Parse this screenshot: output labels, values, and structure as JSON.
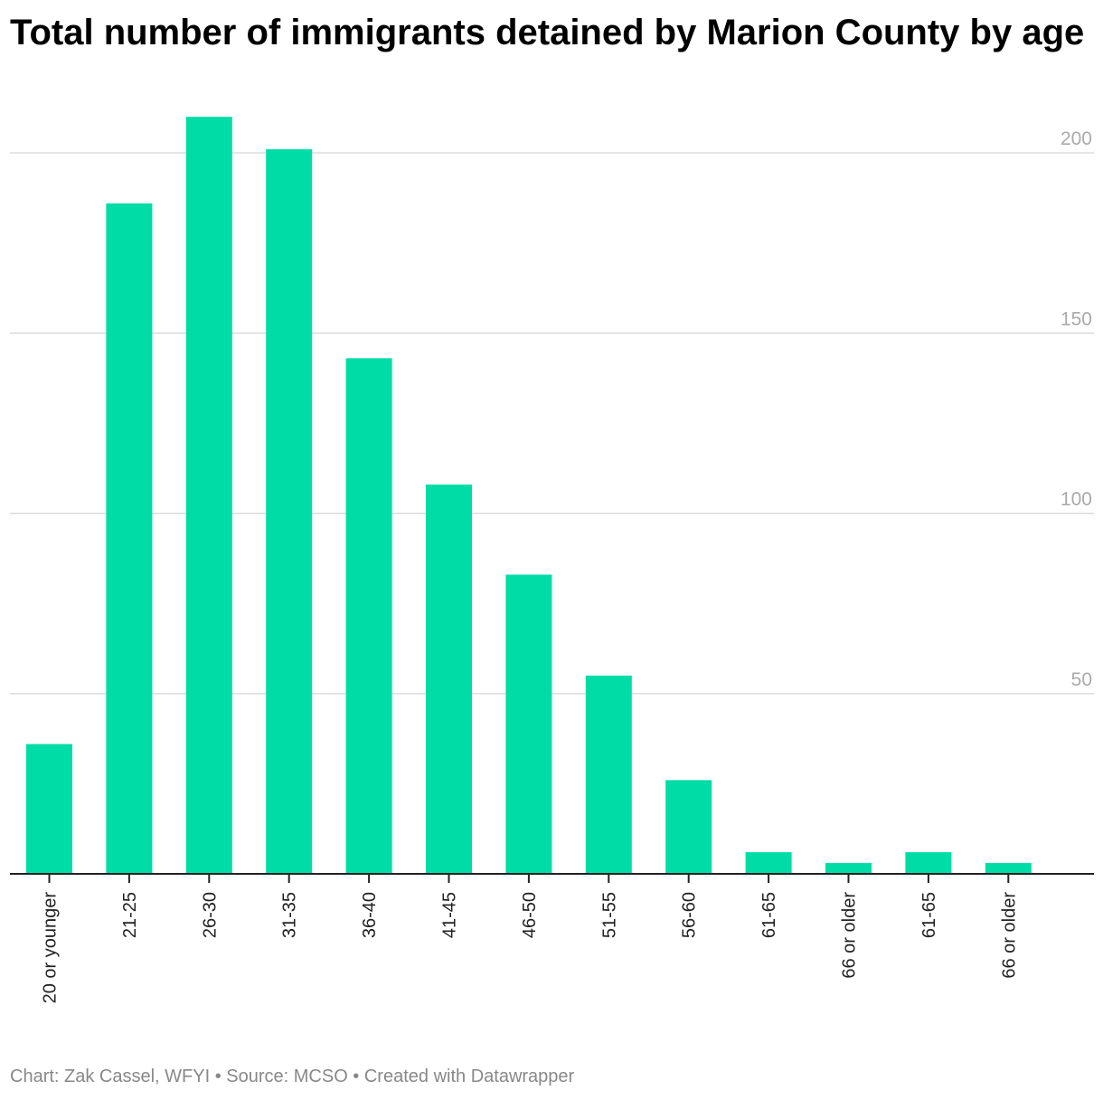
{
  "chart_data": {
    "type": "bar",
    "title": "Total number of immigrants detained by Marion County by age",
    "categories": [
      "20 or younger",
      "21-25",
      "26-30",
      "31-35",
      "36-40",
      "41-45",
      "46-50",
      "51-55",
      "56-60",
      "61-65",
      "66 or older",
      "61-65",
      "66 or older"
    ],
    "values": [
      36,
      186,
      210,
      201,
      143,
      108,
      83,
      55,
      26,
      6,
      3,
      6,
      3
    ],
    "ylim": [
      0,
      210
    ],
    "yticks": [
      50,
      100,
      150,
      200
    ],
    "grid": true,
    "color": "#00dca6"
  },
  "footer": "Chart: Zak Cassel, WFYI • Source: MCSO • Created with Datawrapper"
}
